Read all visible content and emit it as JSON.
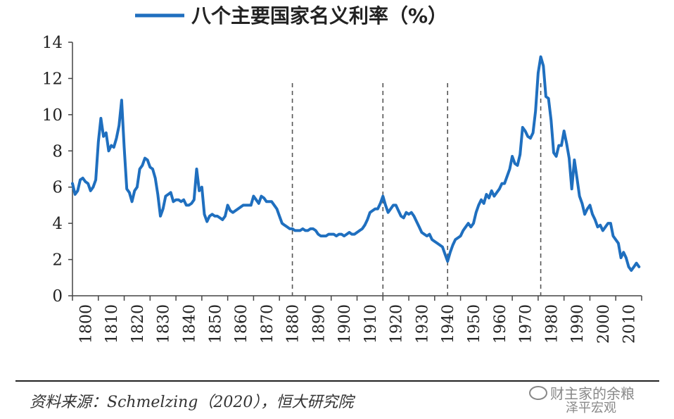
{
  "chart_data": {
    "type": "line",
    "title": "八个主要国家名义利率（%）",
    "series": [
      {
        "name": "八个主要国家名义利率（%）",
        "color": "#1f6fbf",
        "points": [
          [
            1800,
            6.2
          ],
          [
            1801,
            5.6
          ],
          [
            1802,
            5.8
          ],
          [
            1803,
            6.4
          ],
          [
            1804,
            6.5
          ],
          [
            1805,
            6.3
          ],
          [
            1806,
            6.2
          ],
          [
            1807,
            5.8
          ],
          [
            1808,
            6.0
          ],
          [
            1809,
            6.4
          ],
          [
            1810,
            8.5
          ],
          [
            1811,
            9.8
          ],
          [
            1812,
            8.8
          ],
          [
            1813,
            9.0
          ],
          [
            1814,
            8.0
          ],
          [
            1815,
            8.3
          ],
          [
            1816,
            8.2
          ],
          [
            1817,
            8.7
          ],
          [
            1818,
            9.4
          ],
          [
            1819,
            10.8
          ],
          [
            1820,
            8.2
          ],
          [
            1821,
            5.9
          ],
          [
            1822,
            5.7
          ],
          [
            1823,
            5.2
          ],
          [
            1824,
            5.8
          ],
          [
            1825,
            6.0
          ],
          [
            1826,
            7.0
          ],
          [
            1827,
            7.2
          ],
          [
            1828,
            7.6
          ],
          [
            1829,
            7.5
          ],
          [
            1830,
            7.1
          ],
          [
            1831,
            7.0
          ],
          [
            1832,
            6.5
          ],
          [
            1833,
            5.6
          ],
          [
            1834,
            4.4
          ],
          [
            1835,
            4.8
          ],
          [
            1836,
            5.5
          ],
          [
            1837,
            5.6
          ],
          [
            1838,
            5.7
          ],
          [
            1839,
            5.2
          ],
          [
            1840,
            5.3
          ],
          [
            1841,
            5.3
          ],
          [
            1842,
            5.2
          ],
          [
            1843,
            5.3
          ],
          [
            1844,
            5.0
          ],
          [
            1845,
            5.0
          ],
          [
            1846,
            5.1
          ],
          [
            1847,
            5.3
          ],
          [
            1848,
            7.0
          ],
          [
            1849,
            5.8
          ],
          [
            1850,
            6.0
          ],
          [
            1851,
            4.5
          ],
          [
            1852,
            4.1
          ],
          [
            1853,
            4.4
          ],
          [
            1854,
            4.5
          ],
          [
            1855,
            4.4
          ],
          [
            1856,
            4.4
          ],
          [
            1857,
            4.3
          ],
          [
            1858,
            4.2
          ],
          [
            1859,
            4.4
          ],
          [
            1860,
            5.0
          ],
          [
            1861,
            4.7
          ],
          [
            1862,
            4.6
          ],
          [
            1863,
            4.7
          ],
          [
            1864,
            4.8
          ],
          [
            1865,
            4.9
          ],
          [
            1866,
            5.0
          ],
          [
            1867,
            5.0
          ],
          [
            1868,
            5.0
          ],
          [
            1869,
            5.0
          ],
          [
            1870,
            5.5
          ],
          [
            1871,
            5.3
          ],
          [
            1872,
            5.1
          ],
          [
            1873,
            5.5
          ],
          [
            1874,
            5.4
          ],
          [
            1875,
            5.2
          ],
          [
            1876,
            5.2
          ],
          [
            1877,
            5.2
          ],
          [
            1878,
            5.0
          ],
          [
            1879,
            4.8
          ],
          [
            1880,
            4.4
          ],
          [
            1881,
            4.0
          ],
          [
            1882,
            3.9
          ],
          [
            1883,
            3.8
          ],
          [
            1884,
            3.7
          ],
          [
            1885,
            3.7
          ],
          [
            1886,
            3.6
          ],
          [
            1887,
            3.6
          ],
          [
            1888,
            3.6
          ],
          [
            1889,
            3.7
          ],
          [
            1890,
            3.6
          ],
          [
            1891,
            3.6
          ],
          [
            1892,
            3.7
          ],
          [
            1893,
            3.7
          ],
          [
            1894,
            3.6
          ],
          [
            1895,
            3.4
          ],
          [
            1896,
            3.3
          ],
          [
            1897,
            3.3
          ],
          [
            1898,
            3.3
          ],
          [
            1899,
            3.4
          ],
          [
            1900,
            3.4
          ],
          [
            1901,
            3.4
          ],
          [
            1902,
            3.3
          ],
          [
            1903,
            3.4
          ],
          [
            1904,
            3.4
          ],
          [
            1905,
            3.3
          ],
          [
            1906,
            3.4
          ],
          [
            1907,
            3.5
          ],
          [
            1908,
            3.4
          ],
          [
            1909,
            3.4
          ],
          [
            1910,
            3.5
          ],
          [
            1911,
            3.6
          ],
          [
            1912,
            3.7
          ],
          [
            1913,
            3.9
          ],
          [
            1914,
            4.2
          ],
          [
            1915,
            4.6
          ],
          [
            1916,
            4.7
          ],
          [
            1917,
            4.8
          ],
          [
            1918,
            4.8
          ],
          [
            1919,
            5.1
          ],
          [
            1920,
            5.5
          ],
          [
            1921,
            5.0
          ],
          [
            1922,
            4.6
          ],
          [
            1923,
            4.8
          ],
          [
            1924,
            5.0
          ],
          [
            1925,
            5.0
          ],
          [
            1926,
            4.7
          ],
          [
            1927,
            4.4
          ],
          [
            1928,
            4.3
          ],
          [
            1929,
            4.6
          ],
          [
            1930,
            4.5
          ],
          [
            1931,
            4.6
          ],
          [
            1932,
            4.4
          ],
          [
            1933,
            4.1
          ],
          [
            1934,
            3.8
          ],
          [
            1935,
            3.5
          ],
          [
            1936,
            3.4
          ],
          [
            1937,
            3.3
          ],
          [
            1938,
            3.4
          ],
          [
            1939,
            3.1
          ],
          [
            1940,
            3.0
          ],
          [
            1941,
            2.9
          ],
          [
            1942,
            2.8
          ],
          [
            1943,
            2.7
          ],
          [
            1944,
            2.3
          ],
          [
            1945,
            1.9
          ],
          [
            1946,
            2.4
          ],
          [
            1947,
            2.8
          ],
          [
            1948,
            3.1
          ],
          [
            1949,
            3.2
          ],
          [
            1950,
            3.3
          ],
          [
            1951,
            3.6
          ],
          [
            1952,
            3.8
          ],
          [
            1953,
            4.0
          ],
          [
            1954,
            3.8
          ],
          [
            1955,
            4.0
          ],
          [
            1956,
            4.6
          ],
          [
            1957,
            5.0
          ],
          [
            1958,
            5.3
          ],
          [
            1959,
            5.1
          ],
          [
            1960,
            5.6
          ],
          [
            1961,
            5.4
          ],
          [
            1962,
            5.8
          ],
          [
            1963,
            5.5
          ],
          [
            1964,
            5.7
          ],
          [
            1965,
            5.9
          ],
          [
            1966,
            6.2
          ],
          [
            1967,
            6.2
          ],
          [
            1968,
            6.6
          ],
          [
            1969,
            7.0
          ],
          [
            1970,
            7.7
          ],
          [
            1971,
            7.3
          ],
          [
            1972,
            7.2
          ],
          [
            1973,
            7.8
          ],
          [
            1974,
            9.3
          ],
          [
            1975,
            9.1
          ],
          [
            1976,
            8.8
          ],
          [
            1977,
            8.7
          ],
          [
            1978,
            9.0
          ],
          [
            1979,
            10.2
          ],
          [
            1980,
            12.3
          ],
          [
            1981,
            13.2
          ],
          [
            1982,
            12.7
          ],
          [
            1983,
            11.0
          ],
          [
            1984,
            10.9
          ],
          [
            1985,
            9.7
          ],
          [
            1986,
            7.9
          ],
          [
            1987,
            7.7
          ],
          [
            1988,
            8.3
          ],
          [
            1989,
            8.3
          ],
          [
            1990,
            9.1
          ],
          [
            1991,
            8.4
          ],
          [
            1992,
            7.6
          ],
          [
            1993,
            5.9
          ],
          [
            1994,
            7.5
          ],
          [
            1995,
            6.5
          ],
          [
            1996,
            5.5
          ],
          [
            1997,
            5.1
          ],
          [
            1998,
            4.5
          ],
          [
            1999,
            4.8
          ],
          [
            2000,
            5.0
          ],
          [
            2001,
            4.5
          ],
          [
            2002,
            4.2
          ],
          [
            2003,
            3.8
          ],
          [
            2004,
            3.9
          ],
          [
            2005,
            3.6
          ],
          [
            2006,
            3.8
          ],
          [
            2007,
            4.0
          ],
          [
            2008,
            4.0
          ],
          [
            2009,
            3.3
          ],
          [
            2010,
            3.1
          ],
          [
            2011,
            2.9
          ],
          [
            2012,
            2.1
          ],
          [
            2013,
            2.4
          ],
          [
            2014,
            2.1
          ],
          [
            2015,
            1.6
          ],
          [
            2016,
            1.4
          ],
          [
            2017,
            1.6
          ],
          [
            2018,
            1.8
          ],
          [
            2019,
            1.6
          ]
        ]
      }
    ],
    "ylim": [
      0,
      14
    ],
    "y_ticks": [
      "0",
      "2",
      "4",
      "6",
      "8",
      "10",
      "12",
      "14"
    ],
    "xlim": [
      1800,
      2020
    ],
    "x_ticks": [
      "1800",
      "1810",
      "1820",
      "1830",
      "1840",
      "1850",
      "1860",
      "1870",
      "1880",
      "1890",
      "1900",
      "1910",
      "1920",
      "1930",
      "1940",
      "1950",
      "1960",
      "1970",
      "1980",
      "1990",
      "2000",
      "2010"
    ],
    "reference_lines": [
      1885,
      1920,
      1945,
      1981
    ],
    "legend_placement": "top-center",
    "grid": false
  },
  "footer": {
    "source": "资料来源：Schmelzing（2020），恒大研究院",
    "watermark_line1": "财主家的余粮",
    "watermark_line2": "泽平宏观"
  }
}
